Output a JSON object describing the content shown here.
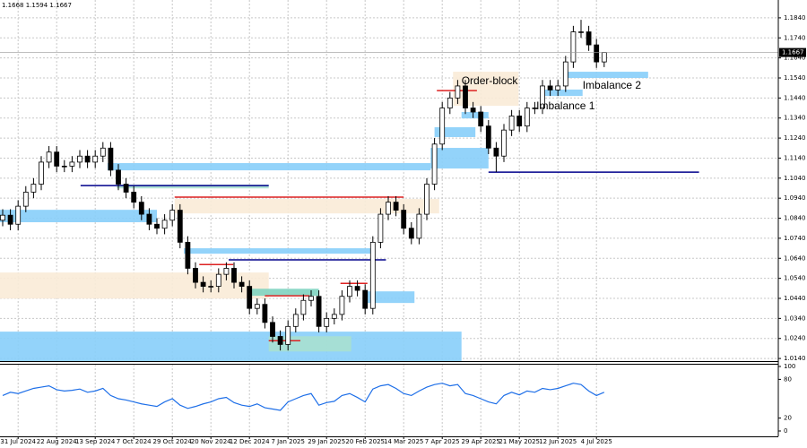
{
  "chart_data": {
    "type": "candlestick",
    "header": "1.1668 1.1594 1.1667",
    "categories": [
      null,
      null,
      "31 Jul 2024",
      null,
      null,
      null,
      null,
      "22 Aug 2024",
      null,
      null,
      null,
      null,
      "13 Sep 2024",
      null,
      null,
      null,
      null,
      "7 Oct 2024",
      null,
      null,
      null,
      null,
      "29 Oct 2024",
      null,
      null,
      null,
      null,
      "20 Nov 2024",
      null,
      null,
      null,
      null,
      "12 Dec 2024",
      null,
      null,
      null,
      null,
      "7 Jan 2025",
      null,
      null,
      null,
      null,
      "29 Jan 2025",
      null,
      null,
      null,
      null,
      "20 Feb 2025",
      null,
      null,
      null,
      null,
      "14 Mar 2025",
      null,
      null,
      null,
      null,
      "7 Apr 2025",
      null,
      null,
      null,
      null,
      "29 Apr 2025",
      null,
      null,
      null,
      null,
      "21 May 2025",
      null,
      null,
      null,
      null,
      "12 Jun 2025",
      null,
      null,
      null,
      null,
      "4 Jul 2025",
      null
    ],
    "open": [
      1.083,
      1.0855,
      1.081,
      1.09,
      1.097,
      1.101,
      1.112,
      1.117,
      1.11,
      1.11,
      1.112,
      1.115,
      1.112,
      1.115,
      1.119,
      1.108,
      1.101,
      1.097,
      1.092,
      1.086,
      1.081,
      1.079,
      1.083,
      1.088,
      1.072,
      1.059,
      1.052,
      1.05,
      1.05,
      1.056,
      1.059,
      1.052,
      1.05,
      1.039,
      1.041,
      1.032,
      1.025,
      1.021,
      1.03,
      1.036,
      1.043,
      1.045,
      1.03,
      1.034,
      1.036,
      1.045,
      1.05,
      1.048,
      1.039,
      1.072,
      1.086,
      1.092,
      1.088,
      1.079,
      1.074,
      1.086,
      1.101,
      1.121,
      1.139,
      1.144,
      1.15,
      1.139,
      1.137,
      1.13,
      1.119,
      1.115,
      1.128,
      1.135,
      1.13,
      1.139,
      1.139,
      1.15,
      1.148,
      1.15,
      1.162,
      1.177,
      1.177,
      1.1705,
      1.162
    ],
    "high": [
      1.0885,
      1.0885,
      1.093,
      1.1,
      1.104,
      1.115,
      1.12,
      1.12,
      1.113,
      1.115,
      1.118,
      1.118,
      1.118,
      1.122,
      1.122,
      1.111,
      1.104,
      1.1,
      1.095,
      1.089,
      1.084,
      1.086,
      1.091,
      1.091,
      1.075,
      1.062,
      1.055,
      1.053,
      1.059,
      1.062,
      1.062,
      1.055,
      1.053,
      1.044,
      1.044,
      1.035,
      1.028,
      1.033,
      1.039,
      1.046,
      1.048,
      1.048,
      1.037,
      1.039,
      1.048,
      1.053,
      1.053,
      1.051,
      1.075,
      1.089,
      1.095,
      1.095,
      1.091,
      1.082,
      1.089,
      1.104,
      1.124,
      1.142,
      1.147,
      1.153,
      1.153,
      1.142,
      1.14,
      1.133,
      1.122,
      1.131,
      1.138,
      1.138,
      1.142,
      1.142,
      1.153,
      1.153,
      1.153,
      1.165,
      1.18,
      1.183,
      1.18,
      1.1735,
      1.1668
    ],
    "low": [
      1.08,
      1.078,
      1.078,
      1.087,
      1.094,
      1.098,
      1.109,
      1.107,
      1.107,
      1.107,
      1.109,
      1.109,
      1.109,
      1.112,
      1.105,
      1.098,
      1.094,
      1.089,
      1.083,
      1.078,
      1.076,
      1.076,
      1.08,
      1.069,
      1.056,
      1.049,
      1.047,
      1.047,
      1.047,
      1.053,
      1.049,
      1.047,
      1.036,
      1.036,
      1.029,
      1.022,
      1.018,
      1.018,
      1.027,
      1.033,
      1.04,
      1.027,
      1.027,
      1.031,
      1.033,
      1.042,
      1.045,
      1.036,
      1.036,
      1.069,
      1.083,
      1.085,
      1.076,
      1.071,
      1.071,
      1.083,
      1.098,
      1.118,
      1.136,
      1.141,
      1.136,
      1.134,
      1.127,
      1.116,
      1.107,
      1.112,
      1.125,
      1.127,
      1.127,
      1.136,
      1.136,
      1.145,
      1.145,
      1.147,
      1.159,
      1.174,
      1.1675,
      1.159,
      1.1594
    ],
    "close": [
      1.0855,
      1.081,
      1.09,
      1.097,
      1.101,
      1.112,
      1.117,
      1.11,
      1.11,
      1.112,
      1.115,
      1.112,
      1.115,
      1.119,
      1.108,
      1.101,
      1.097,
      1.092,
      1.086,
      1.081,
      1.079,
      1.083,
      1.088,
      1.072,
      1.059,
      1.052,
      1.05,
      1.05,
      1.056,
      1.059,
      1.052,
      1.05,
      1.039,
      1.041,
      1.032,
      1.025,
      1.021,
      1.03,
      1.036,
      1.043,
      1.045,
      1.03,
      1.034,
      1.036,
      1.045,
      1.05,
      1.048,
      1.039,
      1.072,
      1.086,
      1.092,
      1.088,
      1.079,
      1.074,
      1.086,
      1.101,
      1.121,
      1.139,
      1.144,
      1.15,
      1.139,
      1.137,
      1.13,
      1.119,
      1.115,
      1.128,
      1.135,
      1.13,
      1.139,
      1.139,
      1.15,
      1.148,
      1.15,
      1.162,
      1.177,
      1.177,
      1.1705,
      1.162,
      1.1667
    ],
    "ylim": [
      1.0127,
      1.1929
    ],
    "yticks": [
      {
        "value": 1.014,
        "label": "1.0140"
      },
      {
        "value": 1.024,
        "label": "1.0240"
      },
      {
        "value": 1.034,
        "label": "1.0340"
      },
      {
        "value": 1.044,
        "label": "1.0440"
      },
      {
        "value": 1.054,
        "label": "1.0540"
      },
      {
        "value": 1.064,
        "label": "1.0640"
      },
      {
        "value": 1.074,
        "label": "1.0740"
      },
      {
        "value": 1.084,
        "label": "1.0840"
      },
      {
        "value": 1.094,
        "label": "1.0940"
      },
      {
        "value": 1.104,
        "label": "1.1040"
      },
      {
        "value": 1.114,
        "label": "1.1140"
      },
      {
        "value": 1.124,
        "label": "1.1240"
      },
      {
        "value": 1.134,
        "label": "1.1340"
      },
      {
        "value": 1.144,
        "label": "1.1440"
      },
      {
        "value": 1.154,
        "label": "1.1540"
      },
      {
        "value": 1.164,
        "label": "1.1640"
      },
      {
        "value": 1.174,
        "label": "1.1740"
      },
      {
        "value": 1.184,
        "label": "1.1840"
      }
    ],
    "last_price": {
      "value": 1.1667,
      "label": "1.1667"
    },
    "grid": true,
    "zones": [
      {
        "x": [
          -0.35,
          59.5
        ],
        "y": [
          1.0274,
          1.0127
        ],
        "color": "#87cefa"
      },
      {
        "x": [
          -0.35,
          34.5
        ],
        "y": [
          1.0569,
          1.0439
        ],
        "color": "#faebd7"
      },
      {
        "x": [
          -0.35,
          20
        ],
        "y": [
          1.0882,
          1.082
        ],
        "color": "#87cefa"
      },
      {
        "x": [
          13.6,
          55.5
        ],
        "y": [
          1.1115,
          1.1079
        ],
        "color": "#87cefa"
      },
      {
        "x": [
          14.8,
          34.5
        ],
        "y": [
          1.1007,
          1.0989
        ],
        "color": "#a8e0d0"
      },
      {
        "x": [
          22.3,
          56.6
        ],
        "y": [
          1.0936,
          1.0864
        ],
        "color": "#faebd7"
      },
      {
        "x": [
          23.5,
          47.9
        ],
        "y": [
          1.069,
          1.0663
        ],
        "color": "#87cefa"
      },
      {
        "x": [
          47.3,
          53.4
        ],
        "y": [
          1.0475,
          1.0417
        ],
        "color": "#87cefa"
      },
      {
        "x": [
          32.2,
          41
        ],
        "y": [
          1.0488,
          1.0453
        ],
        "color": "#7fd3c0"
      },
      {
        "x": [
          34.5,
          45.2
        ],
        "y": [
          1.0251,
          1.0175
        ],
        "color": "#a8e0d0"
      },
      {
        "x": [
          55.5,
          63
        ],
        "y": [
          1.1191,
          1.1088
        ],
        "color": "#87cefa"
      },
      {
        "x": [
          56,
          61.3
        ],
        "y": [
          1.1294,
          1.1245
        ],
        "color": "#87cefa"
      },
      {
        "x": [
          58.4,
          66.9
        ],
        "y": [
          1.1571,
          1.1401
        ],
        "color": "#faebd7"
      },
      {
        "x": [
          59.5,
          63
        ],
        "y": [
          1.137,
          1.1338
        ],
        "color": "#87cefa"
      },
      {
        "x": [
          70,
          75.2
        ],
        "y": [
          1.1482,
          1.145
        ],
        "color": "#87cefa"
      },
      {
        "x": [
          72.9,
          83.7
        ],
        "y": [
          1.1571,
          1.154
        ],
        "color": "#87cefa"
      }
    ],
    "levels": [
      {
        "x": [
          63,
          90.3
        ],
        "y": 1.107,
        "color": "#00008b"
      },
      {
        "x": [
          56.3,
          61.5
        ],
        "y": 1.1477,
        "color": "#dd2222"
      },
      {
        "x": [
          22.3,
          52
        ],
        "y": 1.0945,
        "color": "#dd2222"
      },
      {
        "x": [
          10.1,
          34.5
        ],
        "y": 1.1003,
        "color": "#00008b"
      },
      {
        "x": [
          29.3,
          49.7
        ],
        "y": 1.0632,
        "color": "#00008b"
      },
      {
        "x": [
          25.5,
          29.9
        ],
        "y": 1.0609,
        "color": "#dd2222"
      },
      {
        "x": [
          34,
          39.8
        ],
        "y": 1.0453,
        "color": "#dd2222"
      },
      {
        "x": [
          34.5,
          38.6
        ],
        "y": 1.0229,
        "color": "#dd2222"
      },
      {
        "x": [
          43.8,
          47.3
        ],
        "y": 1.0515,
        "color": "#dd2222"
      }
    ],
    "annotations": [
      {
        "text": "Order-block",
        "x": 59.5,
        "y": 1.1522
      },
      {
        "text": "Imbalance 2",
        "x": 75.2,
        "y": 1.15
      },
      {
        "text": "Imbalance 1",
        "x": 69.2,
        "y": 1.1397
      }
    ],
    "oscillator": {
      "values": [
        55,
        60,
        58,
        62,
        66,
        68,
        70,
        64,
        62,
        63,
        65,
        60,
        62,
        66,
        55,
        50,
        48,
        45,
        42,
        40,
        38,
        45,
        50,
        40,
        35,
        38,
        42,
        45,
        50,
        52,
        44,
        40,
        38,
        42,
        36,
        34,
        32,
        45,
        50,
        55,
        58,
        40,
        44,
        46,
        55,
        58,
        52,
        45,
        65,
        70,
        72,
        66,
        58,
        55,
        62,
        68,
        72,
        74,
        70,
        72,
        58,
        55,
        50,
        45,
        42,
        55,
        60,
        56,
        62,
        60,
        66,
        64,
        66,
        70,
        74,
        72,
        62,
        55,
        60
      ],
      "color": "#1e6fe8",
      "ylim": [
        0,
        100
      ],
      "yticks": [
        100,
        80,
        20,
        0
      ]
    }
  }
}
